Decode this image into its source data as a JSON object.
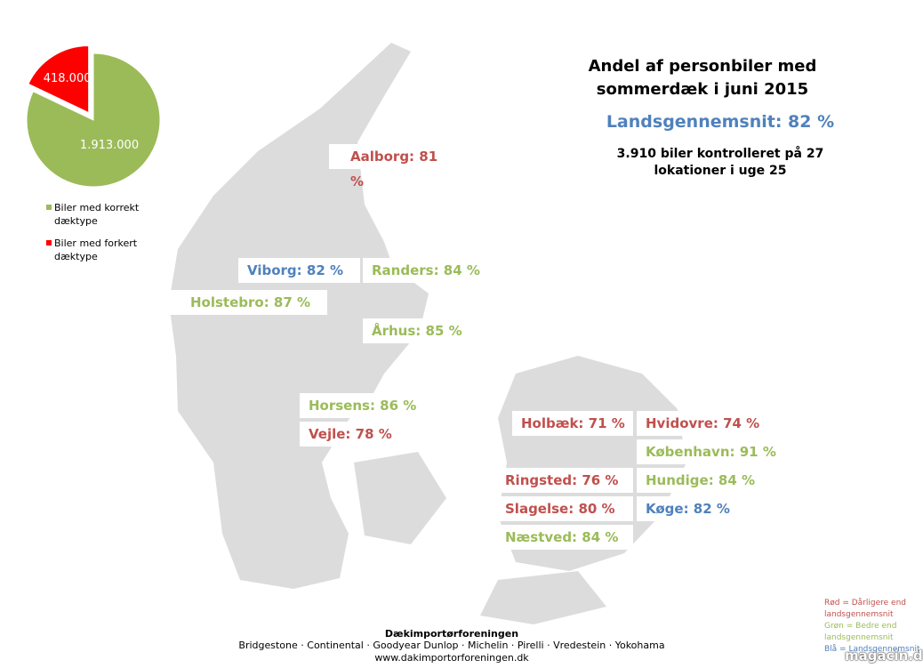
{
  "chart_data": {
    "type": "pie",
    "categories": [
      "Biler med korrekt dæktype",
      "Biler med forkert dæktype"
    ],
    "values": [
      1913000,
      418000
    ],
    "value_labels": [
      "1.913.000",
      "418.000"
    ],
    "colors": [
      "#9bbb59",
      "#ff0000"
    ]
  },
  "header": {
    "title": "Andel af personbiler med sommerdæk i juni 2015",
    "average": "Landsgennemsnit: 82 %",
    "note": "3.910 biler kontrolleret på 27 lokationer i uge 25"
  },
  "map": {
    "cities": [
      {
        "label": "Aalborg: 81 %",
        "color": "#c0504d"
      },
      {
        "label": "Viborg: 82 %",
        "color": "#4f81bd"
      },
      {
        "label": "Randers: 84 %",
        "color": "#9bbb59"
      },
      {
        "label": "Holstebro: 87 %",
        "color": "#9bbb59"
      },
      {
        "label": "Århus: 85 %",
        "color": "#9bbb59"
      },
      {
        "label": "Horsens: 86 %",
        "color": "#9bbb59"
      },
      {
        "label": "Vejle: 78 %",
        "color": "#c0504d"
      },
      {
        "label": "Holbæk: 71 %",
        "color": "#c0504d"
      },
      {
        "label": "Hvidovre: 74 %",
        "color": "#c0504d"
      },
      {
        "label": "København: 91 %",
        "color": "#9bbb59"
      },
      {
        "label": "Ringsted: 76 %",
        "color": "#c0504d"
      },
      {
        "label": "Hundige: 84 %",
        "color": "#9bbb59"
      },
      {
        "label": "Slagelse: 80 %",
        "color": "#c0504d"
      },
      {
        "label": "Køge: 82 %",
        "color": "#4f81bd"
      },
      {
        "label": "Næstved: 84 %",
        "color": "#9bbb59"
      }
    ]
  },
  "legend": {
    "red": "Rød = Dårligere end landsgennemsnit",
    "green": "Grøn = Bedre end landsgennemsnit",
    "blue": "Blå = Landsgennemsnit"
  },
  "footer": {
    "org": "Dækimportørforeningen",
    "brands": "Bridgestone · Continental · Goodyear Dunlop · Michelin · Pirelli · Vredestein · Yokohama",
    "url": "www.dakimportorforeningen.dk"
  },
  "watermark": "magacin.dk"
}
